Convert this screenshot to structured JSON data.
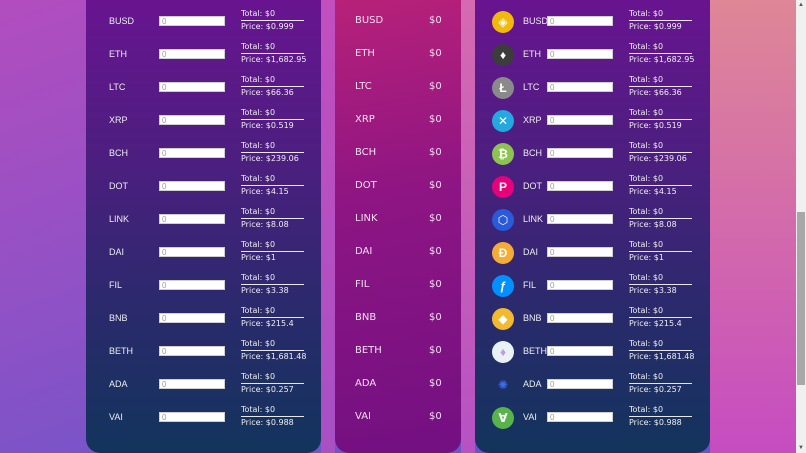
{
  "coins": [
    {
      "symbol": "BUSD",
      "price": "Price: $0.999",
      "total": "Total: $0",
      "input": "0",
      "mid_total": "$0",
      "icon": "busd-icon",
      "color": "#f0b90b"
    },
    {
      "symbol": "ETH",
      "price": "Price: $1,682.95",
      "total": "Total: $0",
      "input": "0",
      "mid_total": "$0",
      "icon": "eth-icon",
      "color": "#3c3c3d"
    },
    {
      "symbol": "LTC",
      "price": "Price: $66.36",
      "total": "Total: $0",
      "input": "0",
      "mid_total": "$0",
      "icon": "ltc-icon",
      "color": "#8a8a8a"
    },
    {
      "symbol": "XRP",
      "price": "Price: $0.519",
      "total": "Total: $0",
      "input": "0",
      "mid_total": "$0",
      "icon": "xrp-icon",
      "color": "#23a9e0"
    },
    {
      "symbol": "BCH",
      "price": "Price: $239.06",
      "total": "Total: $0",
      "input": "0",
      "mid_total": "$0",
      "icon": "bch-icon",
      "color": "#8dc351"
    },
    {
      "symbol": "DOT",
      "price": "Price: $4.15",
      "total": "Total: $0",
      "input": "0",
      "mid_total": "$0",
      "icon": "dot-icon",
      "color": "#e6007a"
    },
    {
      "symbol": "LINK",
      "price": "Price: $8.08",
      "total": "Total: $0",
      "input": "0",
      "mid_total": "$0",
      "icon": "link-icon",
      "color": "#2a5ada"
    },
    {
      "symbol": "DAI",
      "price": "Price: $1",
      "total": "Total: $0",
      "input": "0",
      "mid_total": "$0",
      "icon": "dai-icon",
      "color": "#f5ac37"
    },
    {
      "symbol": "FIL",
      "price": "Price: $3.38",
      "total": "Total: $0",
      "input": "0",
      "mid_total": "$0",
      "icon": "fil-icon",
      "color": "#0090ff"
    },
    {
      "symbol": "BNB",
      "price": "Price: $215.4",
      "total": "Total: $0",
      "input": "0",
      "mid_total": "$0",
      "icon": "bnb-icon",
      "color": "#f3ba2f"
    },
    {
      "symbol": "BETH",
      "price": "Price: $1,681.48",
      "total": "Total: $0",
      "input": "0",
      "mid_total": "$0",
      "icon": "beth-icon",
      "color": "#e8f1f5"
    },
    {
      "symbol": "ADA",
      "price": "Price: $0.257",
      "total": "Total: $0",
      "input": "0",
      "mid_total": "$0",
      "icon": "ada-icon",
      "color": "#0033ad"
    },
    {
      "symbol": "VAI",
      "price": "Price: $0.988",
      "total": "Total: $0",
      "input": "0",
      "mid_total": "$0",
      "icon": "vai-icon",
      "color": "#58b34a"
    }
  ],
  "icon_glyphs": {
    "busd-icon": "◈",
    "eth-icon": "♦",
    "ltc-icon": "Ł",
    "xrp-icon": "✕",
    "bch-icon": "₿",
    "dot-icon": "P",
    "link-icon": "⬡",
    "dai-icon": "Ð",
    "fil-icon": "ƒ",
    "bnb-icon": "◆",
    "beth-icon": "♦",
    "ada-icon": "✺",
    "vai-icon": "∀"
  },
  "scrollbar": {
    "up": "▲",
    "down": "▼"
  }
}
